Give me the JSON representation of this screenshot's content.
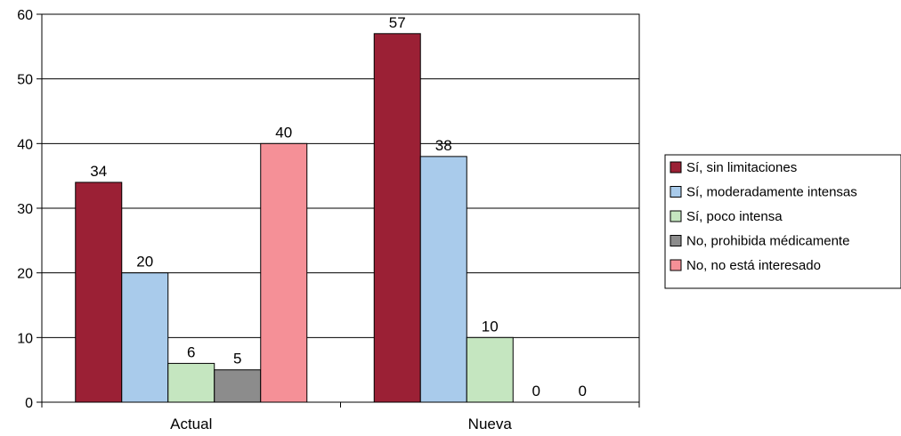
{
  "chart_data": {
    "type": "bar",
    "categories": [
      "Actual",
      "Nueva"
    ],
    "series": [
      {
        "name": "Sí, sin limitaciones",
        "values": [
          34,
          57
        ],
        "labels": [
          "34",
          "57"
        ],
        "color": "#9b2035"
      },
      {
        "name": "Sí, moderadamente intensas",
        "values": [
          20,
          38
        ],
        "labels": [
          "20",
          "38"
        ],
        "color": "#a9cbeb"
      },
      {
        "name": "Sí, poco intensa",
        "values": [
          6,
          10
        ],
        "labels": [
          "6",
          "10"
        ],
        "color": "#c5e6c0"
      },
      {
        "name": "No, prohibida médicamente",
        "values": [
          5,
          0
        ],
        "labels": [
          "5",
          "0"
        ],
        "color": "#8c8c8c"
      },
      {
        "name": "No, no está interesado",
        "values": [
          40,
          0
        ],
        "labels": [
          "40",
          "0"
        ],
        "color": "#f59097"
      }
    ],
    "y_ticks": [
      "0",
      "10",
      "20",
      "30",
      "40",
      "50",
      "60"
    ],
    "ylim": [
      0,
      60
    ],
    "grid": true,
    "legend_position": "right",
    "title": "",
    "xlabel": "",
    "ylabel": ""
  }
}
